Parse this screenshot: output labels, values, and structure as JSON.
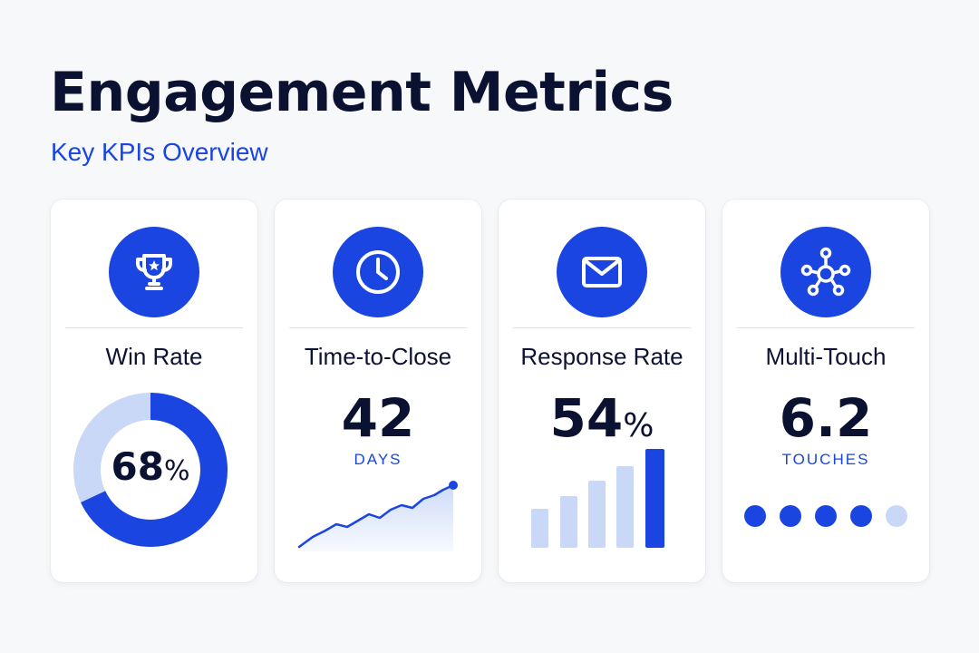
{
  "header": {
    "title": "Engagement Metrics",
    "subtitle": "Key KPIs Overview"
  },
  "colors": {
    "accent": "#1a45e0",
    "accent_light": "#c9d8f7",
    "text_dark": "#0b1130",
    "background": "#f7f8fa"
  },
  "cards": [
    {
      "icon": "trophy-icon",
      "label": "Win Rate",
      "value": "68",
      "unit": "%",
      "progress": 0.68
    },
    {
      "icon": "clock-icon",
      "label": "Time-to-Close",
      "value": "42",
      "unit_label": "DAYS"
    },
    {
      "icon": "envelope-icon",
      "label": "Response Rate",
      "value": "54",
      "unit": "%"
    },
    {
      "icon": "network-icon",
      "label": "Multi-Touch",
      "value": "6.2",
      "unit_label": "TOUCHES",
      "dots_total": 5,
      "dots_filled": 4
    }
  ]
}
